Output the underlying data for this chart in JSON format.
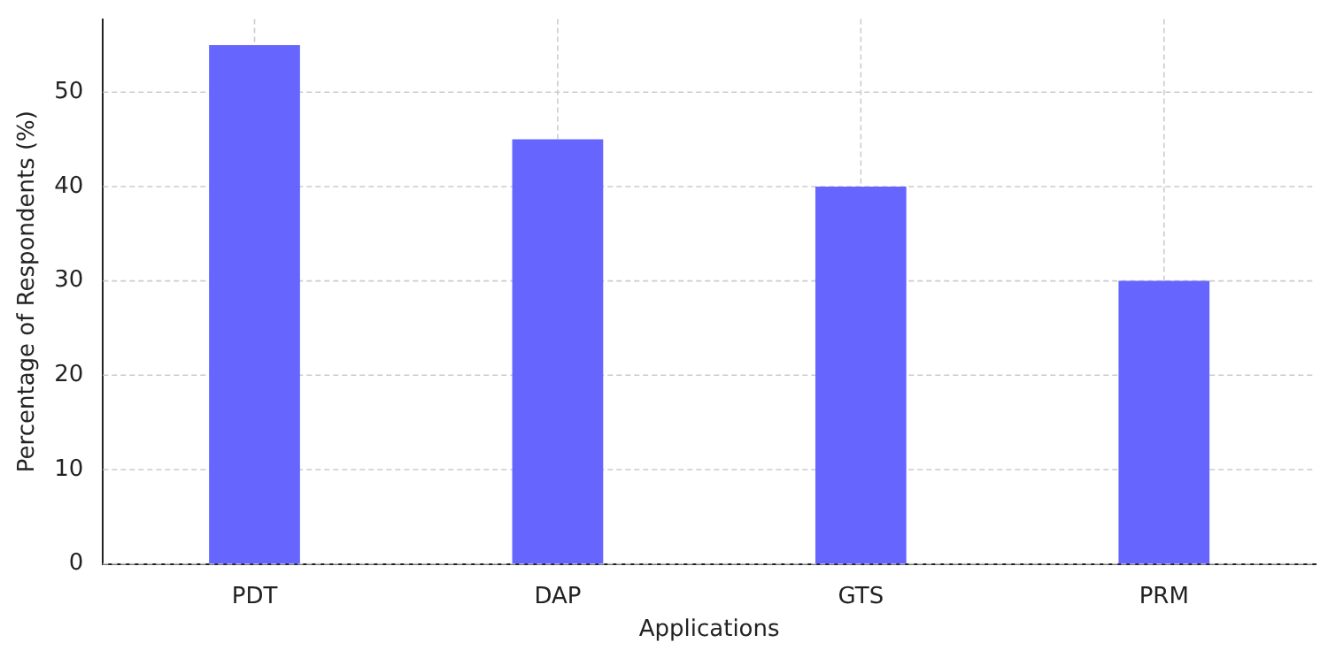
{
  "chart_data": {
    "type": "bar",
    "xlabel": "Applications",
    "ylabel": "Percentage of Respondents (%)",
    "categories": [
      "PDT",
      "DAP",
      "GTS",
      "PRM"
    ],
    "values": [
      55,
      45,
      40,
      30
    ],
    "color": "#6666ff",
    "ylim": [
      0,
      57.75
    ],
    "yticks": [
      0,
      10,
      20,
      30,
      40,
      50
    ],
    "grid": true
  }
}
